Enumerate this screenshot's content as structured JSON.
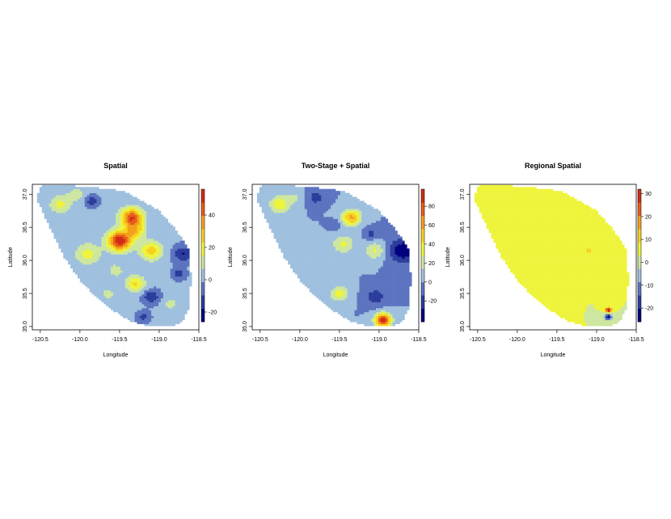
{
  "chart_data": [
    {
      "type": "heatmap",
      "title": "Spatial",
      "xlabel": "Longitude",
      "ylabel": "Latitude",
      "xlim": [
        -120.6,
        -118.5
      ],
      "ylim": [
        34.95,
        37.15
      ],
      "x_ticks": [
        "-120.5",
        "-120.0",
        "-119.5",
        "-119.0",
        "-118.5"
      ],
      "y_ticks": [
        "35.0",
        "35.5",
        "36.0",
        "36.5",
        "37.0"
      ],
      "colorbar": {
        "min": -26,
        "max": 56,
        "ticks": [
          "-20",
          "0",
          "20",
          "40"
        ]
      },
      "background_value": 0,
      "blobs": [
        {
          "lon": -120.25,
          "lat": 36.85,
          "value": 18,
          "r": 0.13
        },
        {
          "lon": -120.05,
          "lat": 37.0,
          "value": 10,
          "r": 0.12
        },
        {
          "lon": -119.35,
          "lat": 36.65,
          "value": 48,
          "r": 0.14
        },
        {
          "lon": -119.5,
          "lat": 36.3,
          "value": 55,
          "r": 0.15
        },
        {
          "lon": -119.3,
          "lat": 36.45,
          "value": 25,
          "r": 0.12
        },
        {
          "lon": -119.1,
          "lat": 36.15,
          "value": 28,
          "r": 0.14
        },
        {
          "lon": -119.9,
          "lat": 36.1,
          "value": 18,
          "r": 0.16
        },
        {
          "lon": -119.3,
          "lat": 35.65,
          "value": 25,
          "r": 0.12
        },
        {
          "lon": -119.55,
          "lat": 35.85,
          "value": 10,
          "r": 0.12
        },
        {
          "lon": -119.65,
          "lat": 35.5,
          "value": 10,
          "r": 0.1
        },
        {
          "lon": -118.85,
          "lat": 35.35,
          "value": 10,
          "r": 0.1
        },
        {
          "lon": -119.1,
          "lat": 35.45,
          "value": -18,
          "r": 0.1
        },
        {
          "lon": -118.75,
          "lat": 35.8,
          "value": -14,
          "r": 0.08
        },
        {
          "lon": -118.7,
          "lat": 36.1,
          "value": -18,
          "r": 0.12
        },
        {
          "lon": -119.85,
          "lat": 36.9,
          "value": -15,
          "r": 0.08
        },
        {
          "lon": -119.2,
          "lat": 35.15,
          "value": -12,
          "r": 0.08
        }
      ]
    },
    {
      "type": "heatmap",
      "title": "Two-Stage + Spatial",
      "xlabel": "Longitude",
      "ylabel": "Latitude",
      "xlim": [
        -120.6,
        -118.5
      ],
      "ylim": [
        34.95,
        37.15
      ],
      "x_ticks": [
        "-120.5",
        "-120.0",
        "-119.5",
        "-119.0",
        "-118.5"
      ],
      "y_ticks": [
        "35.0",
        "35.5",
        "36.0",
        "36.5",
        "37.0"
      ],
      "colorbar": {
        "min": -42,
        "max": 98,
        "ticks": [
          "-20",
          "0",
          "20",
          "40",
          "60",
          "80"
        ]
      },
      "background_value": 0,
      "blobs": [
        {
          "lon": -120.25,
          "lat": 36.85,
          "value": 40,
          "r": 0.13
        },
        {
          "lon": -120.05,
          "lat": 36.95,
          "value": 15,
          "r": 0.1
        },
        {
          "lon": -119.35,
          "lat": 36.65,
          "value": 60,
          "r": 0.12
        },
        {
          "lon": -119.45,
          "lat": 36.25,
          "value": 30,
          "r": 0.14
        },
        {
          "lon": -119.05,
          "lat": 36.15,
          "value": 30,
          "r": 0.13
        },
        {
          "lon": -119.5,
          "lat": 35.5,
          "value": 35,
          "r": 0.12
        },
        {
          "lon": -118.95,
          "lat": 35.1,
          "value": 95,
          "r": 0.1
        },
        {
          "lon": -119.05,
          "lat": 35.45,
          "value": -25,
          "r": 0.12
        },
        {
          "lon": -118.7,
          "lat": 36.15,
          "value": -40,
          "r": 0.18
        },
        {
          "lon": -119.8,
          "lat": 36.95,
          "value": -22,
          "r": 0.1
        },
        {
          "lon": -119.55,
          "lat": 36.55,
          "value": -15,
          "r": 0.07
        },
        {
          "lon": -119.1,
          "lat": 36.4,
          "value": -18,
          "r": 0.08
        }
      ]
    },
    {
      "type": "heatmap",
      "title": "Regional Spatial",
      "xlabel": "Longitude",
      "ylabel": "Latitude",
      "xlim": [
        -120.6,
        -118.5
      ],
      "ylim": [
        34.95,
        37.15
      ],
      "x_ticks": [
        "-120.5",
        "-120.0",
        "-119.5",
        "-119.0",
        "-118.5"
      ],
      "y_ticks": [
        "35.0",
        "35.5",
        "36.0",
        "36.5",
        "37.0"
      ],
      "colorbar": {
        "min": -26,
        "max": 32,
        "ticks": [
          "-20",
          "-10",
          "0",
          "10",
          "20",
          "30"
        ]
      },
      "background_value": 3,
      "blobs": [
        {
          "lon": -118.85,
          "lat": 35.25,
          "value": 30,
          "r": 0.04
        },
        {
          "lon": -118.85,
          "lat": 35.15,
          "value": -25,
          "r": 0.05
        },
        {
          "lon": -119.1,
          "lat": 36.15,
          "value": 12,
          "r": 0.03
        }
      ]
    }
  ],
  "colors": {
    "palette": [
      "#00007f",
      "#2b3c9b",
      "#5c74c0",
      "#9fc0de",
      "#cde6a0",
      "#eef43c",
      "#f7d020",
      "#f3a01c",
      "#e85c18",
      "#d12a14"
    ]
  }
}
